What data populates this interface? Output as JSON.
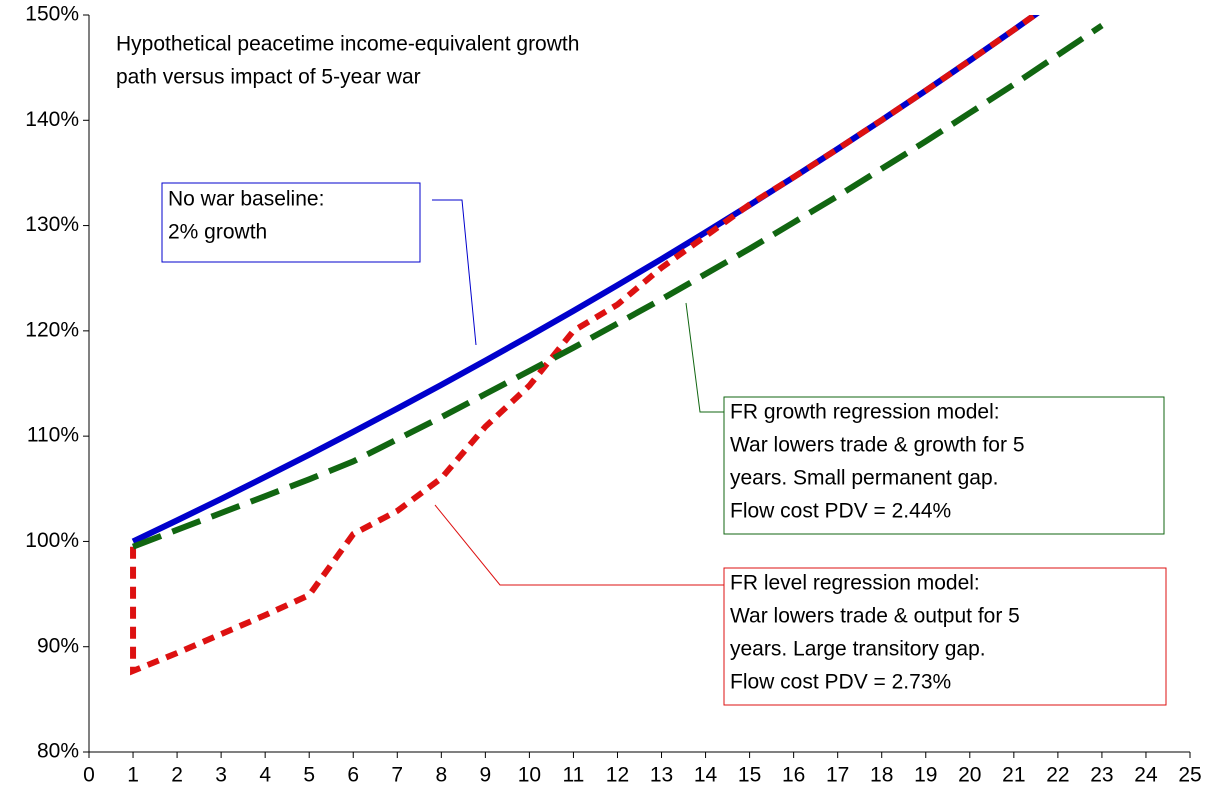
{
  "chart_data": {
    "type": "line",
    "title": [
      "Hypothetical peacetime income-equivalent growth",
      "path versus impact of 5-year war"
    ],
    "xlim": [
      0,
      25
    ],
    "xticks": [
      0,
      1,
      2,
      3,
      4,
      5,
      6,
      7,
      8,
      9,
      10,
      11,
      12,
      13,
      14,
      15,
      16,
      17,
      18,
      19,
      20,
      21,
      22,
      23,
      24,
      25
    ],
    "ylim": [
      80,
      150
    ],
    "yticks": [
      {
        "value": 80,
        "label": "80%"
      },
      {
        "value": 90,
        "label": "90%"
      },
      {
        "value": 100,
        "label": "100%"
      },
      {
        "value": 110,
        "label": "110%"
      },
      {
        "value": 120,
        "label": "120%"
      },
      {
        "value": 130,
        "label": "130%"
      },
      {
        "value": 140,
        "label": "140%"
      },
      {
        "value": 150,
        "label": "150%"
      }
    ],
    "series": [
      {
        "color": "#0000cc",
        "dash": "solid",
        "x": [
          1,
          2,
          3,
          4,
          5,
          6,
          7,
          8,
          9,
          10,
          11,
          12,
          13,
          14,
          15,
          16,
          17,
          18,
          19,
          20,
          21,
          22
        ],
        "values": [
          100,
          102,
          104.04,
          106.12,
          108.24,
          110.41,
          112.62,
          114.87,
          117.17,
          119.51,
          121.9,
          124.34,
          126.82,
          129.36,
          131.95,
          134.59,
          137.28,
          140.02,
          142.82,
          145.68,
          148.59,
          151.57
        ]
      },
      {
        "color": "#dd1111",
        "dash": "dotted",
        "x": [
          1,
          1,
          2,
          3,
          4,
          5,
          6,
          7,
          8,
          9,
          10,
          11,
          12,
          13,
          14,
          15,
          16,
          17,
          18,
          19,
          20,
          21,
          22
        ],
        "values": [
          99.5,
          87.7,
          89.4,
          91.2,
          93,
          94.9,
          100.7,
          102.9,
          106,
          110.9,
          114.8,
          120,
          122.5,
          126,
          129,
          132,
          134.59,
          137.28,
          140.02,
          142.82,
          145.68,
          148.59,
          151.57
        ]
      },
      {
        "color": "#116611",
        "dash": "dashed",
        "x": [
          1,
          2,
          3,
          4,
          5,
          6,
          7,
          8,
          9,
          10,
          11,
          12,
          13,
          14,
          15,
          16,
          17,
          18,
          19,
          20,
          21,
          22,
          23
        ],
        "values": [
          99.5,
          101.1,
          102.7,
          104.3,
          105.9,
          107.6,
          109.7,
          111.8,
          114,
          116.2,
          118.4,
          120.7,
          123,
          125.4,
          127.8,
          130.3,
          132.8,
          135.4,
          138,
          140.7,
          143.4,
          146.2,
          149
        ]
      }
    ],
    "annotations": [
      {
        "lines": [
          "No war baseline:",
          "2% growth"
        ],
        "color": "#0000cc"
      },
      {
        "lines": [
          "FR growth regression model:",
          "War lowers trade & growth for 5",
          "years. Small permanent gap.",
          "Flow cost PDV = 2.44%"
        ],
        "color": "#116611"
      },
      {
        "lines": [
          "FR level regression model:",
          "War lowers trade & output for 5",
          "years. Large transitory gap.",
          "Flow cost PDV = 2.73%"
        ],
        "color": "#dd1111"
      }
    ]
  }
}
